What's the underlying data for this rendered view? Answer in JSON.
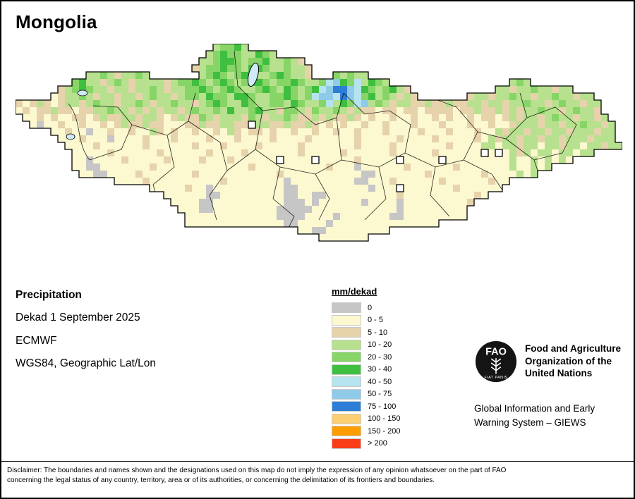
{
  "page": {
    "title": "Mongolia"
  },
  "info": {
    "heading": "Precipitation",
    "line1": "Dekad 1 September 2025",
    "line2": "ECMWF",
    "line3": "WGS84, Geographic Lat/Lon"
  },
  "legend": {
    "title": "mm/dekad",
    "items": [
      {
        "label": "0",
        "color": "#c6c6c6"
      },
      {
        "label": "0 - 5",
        "color": "#fcf8cf"
      },
      {
        "label": "5 - 10",
        "color": "#e6d3ab"
      },
      {
        "label": "10 - 20",
        "color": "#b7e18e"
      },
      {
        "label": "20 - 30",
        "color": "#86d566"
      },
      {
        "label": "30 - 40",
        "color": "#3fbf3f"
      },
      {
        "label": "40 - 50",
        "color": "#b5e3ee"
      },
      {
        "label": "50 - 75",
        "color": "#8fcbe8"
      },
      {
        "label": "75 - 100",
        "color": "#2e7ed7"
      },
      {
        "label": "100 - 150",
        "color": "#fcd072"
      },
      {
        "label": "150 - 200",
        "color": "#ff9c00"
      },
      {
        "label": "> 200",
        "color": "#f93d16"
      }
    ]
  },
  "map": {
    "cell_size": 10,
    "outline_color": "#000000",
    "palette": {
      "g": "#c6c6c6",
      "y": "#fcf8cf",
      "t": "#e6d3ab",
      "l": "#b7e18e",
      "m": "#86d566",
      "d": "#3fbf3f",
      "c": "#b5e3ee",
      "b": "#8fcbe8",
      "B": "#2e7ed7"
    },
    "grid_rows": [
      "............................lmmdl.....................................................",
      "...........................lmdmmlldml.................................................",
      "..........................llmddmlmmdllmlt.............................................",
      ".........................tlmmdmmlddmllmllt............................................",
      "..........llmltllml.......lmdmlmdmllmdmllt...mlmll....................................",
      "........mdlltlmltlllltlmmdmlmdmlmddmlmmdmllmcbdmcldml.................lml.............",
      "......tlmdmlltlltllmltllmmdmlmdmllmdmldmlmdcbBBbcdmlmdlt............lltllmlltll.......",
      ".....ytllmltlltlltlmlltlmmldmmlddmllmmdmlmcbbcBbcmdlmltlt.......tlltllmlltllmlltll....",
      "tytltytlltlmlltllmltllmlltlmdmlldmllmmldmllmcldmcblmltllttlttlttlltlltllmlltlmlltll...",
      "ytyttlttyttllmlltltltlltlmllmldllmdlltmmltmllmltlttyttyttyttttyttlttltltllmlltlmllt...",
      ".yytytyyttytlttlltlltytlttmltllltmltllmlttltlttltytyytyytyytytyytyttytltlltlmlltlltl..",
      "..ygyytyytyytytlttlttyyyttlttlltt llttlttltytytyytyytyyytyyytyyytyytyytllltlltllmlltl..",
      ".....yytyygyytyytyyltytyytyytyltyttytyytyytyytyytyyytyyyytyyytyyytyyltlltlltlltllltll.",
      "......yyytyyygyyyytyyytyyyytyyytyyyytyyyytyyyyyytyyyyytyyyytyyyyytyltlltlltlltllltlll.",
      ".......yyyytyyyyyytyyyyyytyyytyyyytyyyyytyyyyyyytyyyytyyyyyyytyyyyllylltllylltllylltll",
      "........yyyyytyyyyyytyyyyyytyyyytyyyyyyytyyyyytyyyyyytyyyyytyyyyyyтyлyltlyllyllyll....",
      "........yygyyyytyyyyytyyyytyyytyyyyyyтyyyyтyyyyytyyyyyтyyyyyтyyyyyyyyylyylylyly........",
      "........yyggyyyyyyytyyyyyyyyyyyyytyyyyyyyyyytyyygyyyyyytyyyyyytyyyyyyylyylyl..........",
      ".........yyggyyyytyyyyyyytyyyyyyyyyyytyyyyyyyyyyyggyyyyyyytyyyyyyytyyyylyl.............",
      "..............yyyytyyyyyyyyyytyyyyyyyygyyyyyyyyyggyyytyyyyyytyyyyyytyy................",
      "...................yyyyytyygyyyyyyyyyyggyyyyyyyyyygyyyтyyyyyyytyyyyyy..................",
      ".....................yyyyyyggyyyyyyyyyggyyggyyyyyyyyyytyyyyyyyyyyty...................",
      "......................yyyyggyyyyyyyyyygggygyyyyyygyyyygyyyyyyyyyt.....................",
      ".......................yyyggyyyyyyyyygggggyyyyyyyyyyyygyyyyyyyyy......................",
      "........................yyyyyyyyyyyyyggggyyyygyyyyyyyggyyyyyyyyy......................",
      "........................yyyyyyyyyyyyyyggyyyygyyyyyyyyyyyyyyy..........................",
      "........................................yyggyyyyyyyyy.................................",
      "...........................................yyyyyyy...................................."
    ]
  },
  "footer": {
    "fao_logo_text": "FAO",
    "fao_logo_motto": "FIAT PANIS",
    "fao_lines": [
      "Food and Agriculture",
      "Organization of the",
      "United Nations"
    ],
    "giews_lines": [
      "Global Information and Early",
      "Warning System – GIEWS"
    ],
    "disclaimer_line1": "Disclaimer: The boundaries and names shown and the designations used on this map do not imply the expression of any opinion whatsoever on the part of FAO",
    "disclaimer_line2": "concerning the legal status of any country, territory, area or of its authorities, or concerning the delimitation of its frontiers and boundaries."
  }
}
